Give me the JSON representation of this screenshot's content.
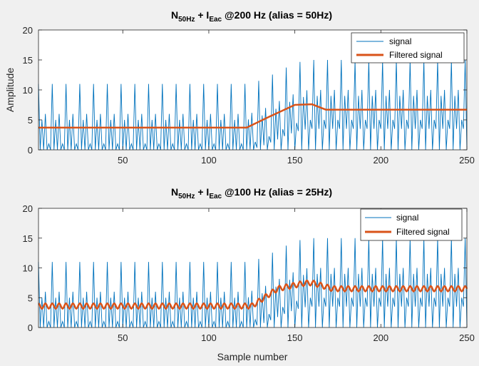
{
  "chart_data": [
    {
      "type": "line",
      "title": {
        "base": "N",
        "sub1": "50Hz",
        "mid": " + I",
        "sub2": "Eac",
        "tail": " @200 Hz (alias = 50Hz)"
      },
      "xlabel": "",
      "ylabel": "Amplitude",
      "xlim": [
        1,
        250
      ],
      "ylim": [
        0,
        20
      ],
      "xticks": [
        50,
        100,
        150,
        200,
        250
      ],
      "yticks": [
        0,
        5,
        10,
        15,
        20
      ],
      "grid": false,
      "legend_position": "top-right",
      "colors": {
        "signal": "#0072BD",
        "filtered": "#D95319"
      },
      "series": [
        {
          "name": "signal",
          "pattern": {
            "period_samples": 4,
            "baseline_low": 0,
            "peaks_before": [
              11,
              6
            ],
            "peaks_after": [
              15,
              10
            ],
            "mid_before": [
              5,
              1
            ],
            "mid_after": [
              9,
              5
            ],
            "transition_samples": [
              120,
              160
            ]
          }
        },
        {
          "name": "Filtered signal",
          "points": [
            [
              1,
              3.7
            ],
            [
              122,
              3.7
            ],
            [
              135,
              5.5
            ],
            [
              150,
              7.5
            ],
            [
              160,
              7.6
            ],
            [
              168,
              6.7
            ],
            [
              250,
              6.7
            ]
          ]
        }
      ]
    },
    {
      "type": "line",
      "title": {
        "base": "N",
        "sub1": "50Hz",
        "mid": " + I",
        "sub2": "Eac",
        "tail": " @100 Hz (alias = 25Hz)"
      },
      "xlabel": "Sample number",
      "ylabel": "",
      "xlim": [
        1,
        250
      ],
      "ylim": [
        0,
        20
      ],
      "xticks": [
        50,
        100,
        150,
        200,
        250
      ],
      "yticks": [
        0,
        5,
        10,
        15,
        20
      ],
      "grid": false,
      "legend_position": "top-right",
      "colors": {
        "signal": "#0072BD",
        "filtered": "#D95319"
      },
      "series": [
        {
          "name": "signal",
          "pattern": {
            "period_samples": 4,
            "baseline_low": 0,
            "peaks_before": [
              11,
              6
            ],
            "peaks_after": [
              15,
              10
            ],
            "mid_before": [
              5,
              1
            ],
            "mid_after": [
              9,
              5
            ],
            "transition_samples": [
              120,
              160
            ]
          }
        },
        {
          "name": "Filtered signal",
          "trend_points": [
            [
              1,
              3.6
            ],
            [
              125,
              3.6
            ],
            [
              140,
              6.5
            ],
            [
              155,
              7.4
            ],
            [
              160,
              7.5
            ],
            [
              172,
              6.5
            ],
            [
              250,
              6.5
            ]
          ],
          "ripple_amplitude": 0.45,
          "ripple_period_samples": 4
        }
      ]
    }
  ]
}
